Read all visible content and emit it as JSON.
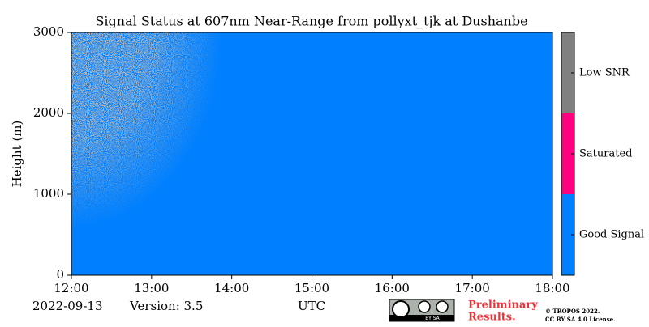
{
  "chart_data": {
    "type": "status-map",
    "title": "Signal Status at 607nm Near-Range from pollyxt_tjk at Dushanbe",
    "y_label": "Height (m)",
    "x_label": "UTC",
    "xlim": [
      12,
      18
    ],
    "xticks": [
      {
        "value": 12,
        "label": "12:00"
      },
      {
        "value": 13,
        "label": "13:00"
      },
      {
        "value": 14,
        "label": "14:00"
      },
      {
        "value": 15,
        "label": "15:00"
      },
      {
        "value": 16,
        "label": "16:00"
      },
      {
        "value": 17,
        "label": "17:00"
      },
      {
        "value": 18,
        "label": "18:00"
      }
    ],
    "ylim": [
      0,
      3000
    ],
    "yticks": [
      0,
      1000,
      2000,
      3000
    ],
    "status_classes": [
      {
        "name": "Good Signal",
        "color": "#0080ff"
      },
      {
        "name": "Saturated",
        "color": "#ff0080"
      },
      {
        "name": "Low SNR",
        "color": "#808080"
      }
    ],
    "date": "2022-09-13",
    "version": "Version: 3.5",
    "note": [
      "Preliminary",
      "Results."
    ],
    "badge_text": "BY SA",
    "copyright": [
      "© TROPOS 2022.",
      "CC BY SA 4.0 License."
    ]
  }
}
